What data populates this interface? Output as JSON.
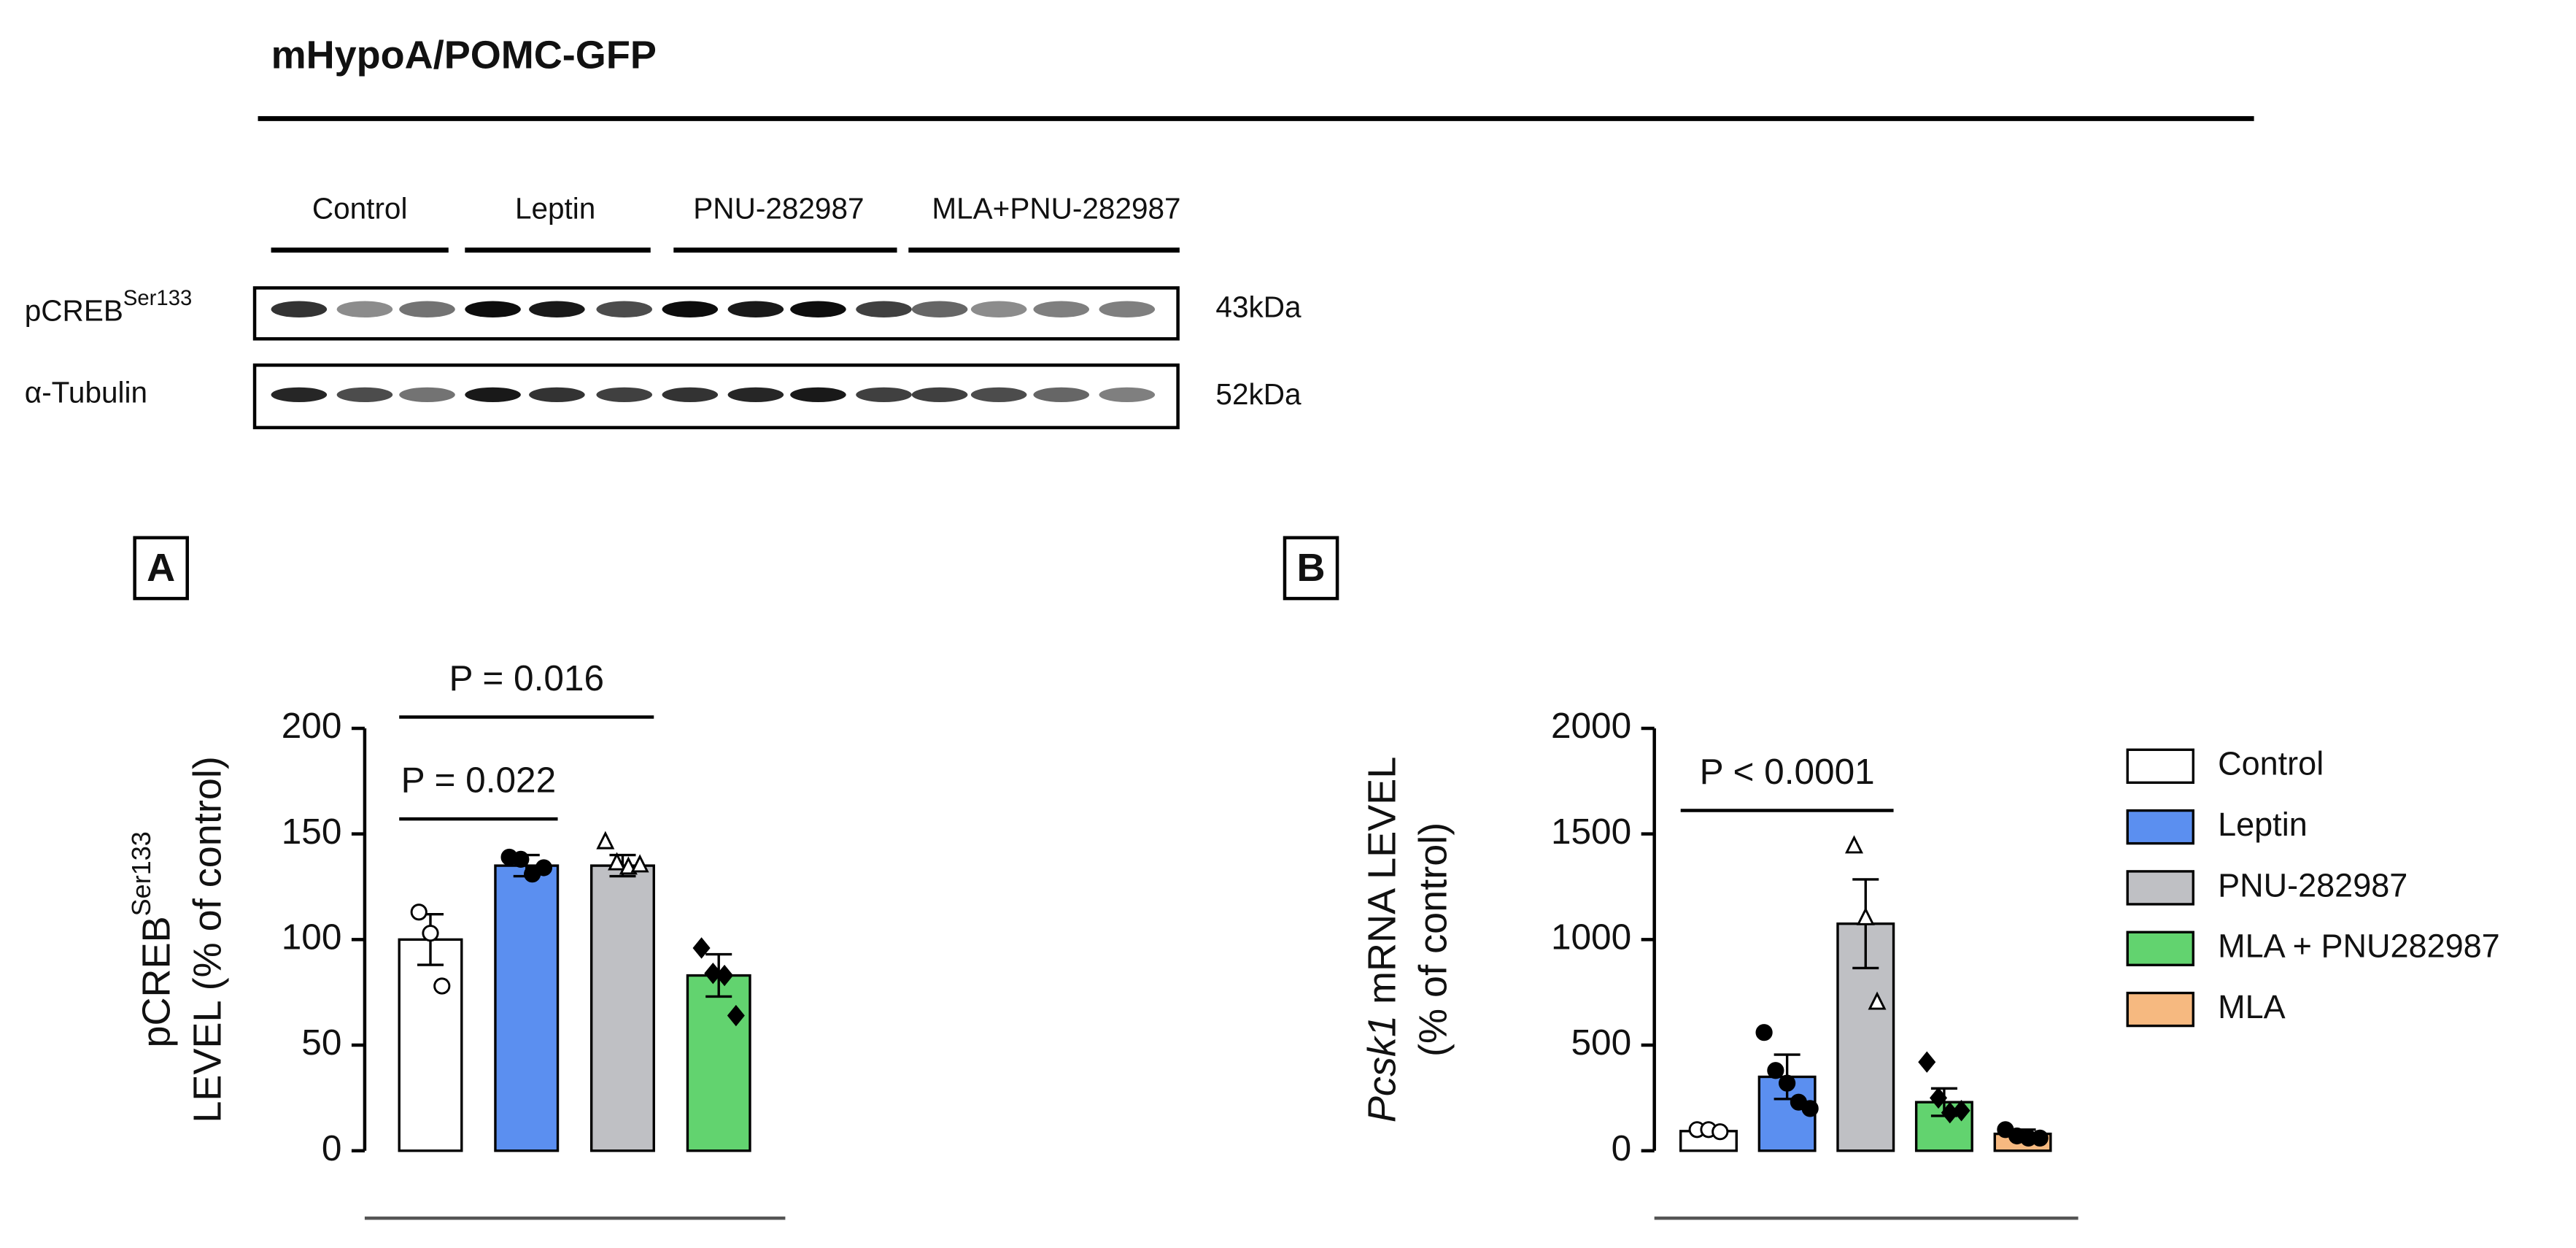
{
  "title": "mHypoA/POMC-GFP",
  "blot": {
    "groups": [
      "Control",
      "Leptin",
      "PNU-282987",
      "MLA+PNU-282987"
    ],
    "rows": [
      {
        "label": "pCREB",
        "sup": "Ser133",
        "kda": "43kDa"
      },
      {
        "label": "α-Tubulin",
        "kda": "52kDa"
      }
    ]
  },
  "chart_data": [
    {
      "type": "bar",
      "panel": "A",
      "ylabel": {
        "main": "pCREB",
        "sup": "Ser133",
        "line2": "LEVEL (% of control)"
      },
      "ylim": [
        0,
        200
      ],
      "yticks": [
        0,
        50,
        100,
        150,
        200
      ],
      "series": [
        {
          "color": "#ffffff",
          "marker": "circle-open",
          "values": [
            100
          ],
          "errors": [
            12
          ],
          "points": [
            113,
            103,
            78
          ]
        },
        {
          "color": "#5b8ff0",
          "marker": "circle",
          "values": [
            135
          ],
          "errors": [
            5
          ],
          "points": [
            139,
            138,
            131,
            134
          ]
        },
        {
          "color": "#bfc0c4",
          "marker": "triangle-open",
          "values": [
            135
          ],
          "errors": [
            5
          ],
          "points": [
            146,
            136,
            134,
            135
          ]
        },
        {
          "color": "#62d36f",
          "marker": "diamond",
          "values": [
            83
          ],
          "errors": [
            10
          ],
          "points": [
            96,
            84,
            83,
            64
          ]
        }
      ],
      "annotations": [
        {
          "text": "P = 0.022",
          "between": [
            0,
            1
          ]
        },
        {
          "text": "P = 0.016",
          "between": [
            0,
            2
          ]
        }
      ]
    },
    {
      "type": "bar",
      "panel": "B",
      "ylabel": {
        "italic": "Pcsk1",
        "main": " mRNA LEVEL",
        "line2": "(% of control)"
      },
      "ylim": [
        0,
        2000
      ],
      "yticks": [
        0,
        500,
        1000,
        1500,
        2000
      ],
      "series": [
        {
          "name": "Control",
          "color": "#ffffff",
          "marker": "circle-open",
          "values": [
            93
          ],
          "errors": [
            15
          ],
          "points": [
            100,
            100,
            90
          ]
        },
        {
          "name": "Leptin",
          "color": "#5b8ff0",
          "marker": "circle",
          "values": [
            350
          ],
          "errors": [
            105
          ],
          "points": [
            560,
            380,
            320,
            230,
            200
          ]
        },
        {
          "name": "PNU-282987",
          "color": "#bfc0c4",
          "marker": "triangle-open",
          "values": [
            1075
          ],
          "errors": [
            210
          ],
          "points": [
            1440,
            1100,
            700
          ]
        },
        {
          "name": "MLA + PNU282987",
          "color": "#62d36f",
          "marker": "diamond",
          "values": [
            230
          ],
          "errors": [
            65
          ],
          "points": [
            420,
            250,
            180,
            190
          ]
        },
        {
          "name": "MLA",
          "color": "#f6b980",
          "marker": "circle",
          "values": [
            80
          ],
          "errors": [
            20
          ],
          "points": [
            100,
            70,
            60,
            60
          ]
        }
      ],
      "annotations": [
        {
          "text": "P < 0.0001",
          "between": [
            0,
            2
          ]
        }
      ]
    }
  ]
}
